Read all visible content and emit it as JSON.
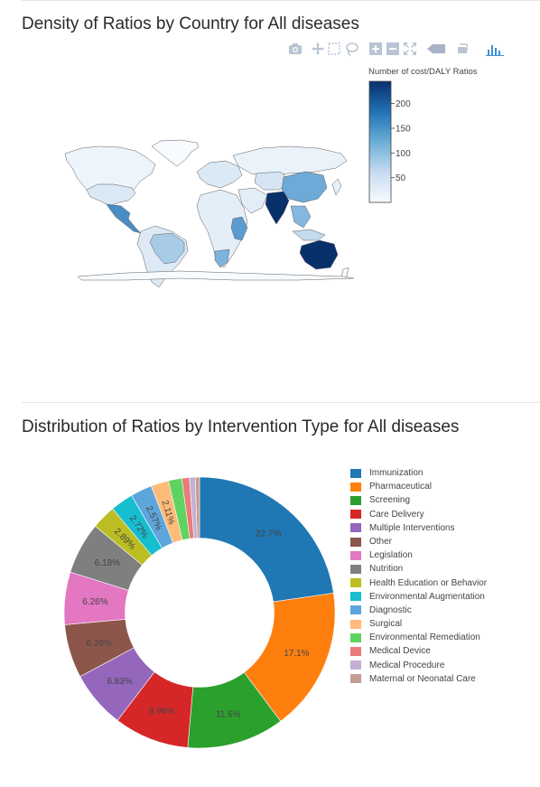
{
  "map_chart": {
    "title": "Density of Ratios by Country for All diseases",
    "colorbar": {
      "title": "Number of cost/DALY Ratios",
      "ticks": [
        50,
        100,
        150,
        200
      ],
      "range": [
        0,
        245
      ],
      "colors": [
        "#f7fbff",
        "#c6dbef",
        "#6baed6",
        "#2171b5",
        "#08306b"
      ]
    },
    "chart_data": {
      "type": "choropleth",
      "metric": "Number of cost/DALY Ratios",
      "regions": [
        {
          "name": "India",
          "value": 230
        },
        {
          "name": "Australia",
          "value": 245
        },
        {
          "name": "China",
          "value": 80
        },
        {
          "name": "South East Asia",
          "value": 60
        },
        {
          "name": "Mexico",
          "value": 75
        },
        {
          "name": "Brazil",
          "value": 40
        },
        {
          "name": "East Africa",
          "value": 70
        },
        {
          "name": "South Africa",
          "value": 60
        },
        {
          "name": "USA",
          "value": 30
        },
        {
          "name": "Europe",
          "value": 25
        },
        {
          "name": "Russia",
          "value": 20
        }
      ]
    }
  },
  "pie_chart": {
    "title": "Distribution of Ratios by Intervention Type for All diseases",
    "chart_data": {
      "type": "pie",
      "hole": 0.55,
      "labels": [
        "Immunization",
        "Pharmaceutical",
        "Screening",
        "Care Delivery",
        "Multiple Interventions",
        "Other",
        "Legislation",
        "Nutrition",
        "Health Education or Behavior",
        "Environmental Augmentation",
        "Diagnostic",
        "Surgical",
        "Environmental Remediation",
        "Medical Device",
        "Medical Procedure",
        "Maternal or Neonatal Care"
      ],
      "values": [
        22.7,
        17.1,
        11.6,
        8.96,
        6.83,
        6.39,
        6.26,
        6.18,
        2.89,
        2.72,
        2.57,
        2.11,
        1.6,
        0.9,
        0.7,
        0.5
      ],
      "text_labels": [
        "22.7%",
        "17.1%",
        "11.6%",
        "8.96%",
        "6.83%",
        "6.39%",
        "6.26%",
        "6.18%",
        "2.89%",
        "2.72%",
        "2.57%",
        "2.11%",
        "",
        "",
        "",
        ""
      ],
      "colors": [
        "#1f77b4",
        "#ff7f0e",
        "#2ca02c",
        "#d62728",
        "#9467bd",
        "#8c564b",
        "#e377c2",
        "#7f7f7f",
        "#bcbd22",
        "#17becf",
        "#5da5da",
        "#ffbb78",
        "#5fd35f",
        "#e97b7b",
        "#c5b0d5",
        "#c49c94"
      ],
      "legend": "right"
    }
  },
  "modebar": {
    "icons": [
      "camera-icon",
      "pan-icon",
      "box-select-icon",
      "lasso-icon",
      "zoom-in-icon",
      "zoom-out-icon",
      "reset-icon",
      "hover-icon",
      "toggle-spike-icon",
      "plotly-logo"
    ]
  }
}
